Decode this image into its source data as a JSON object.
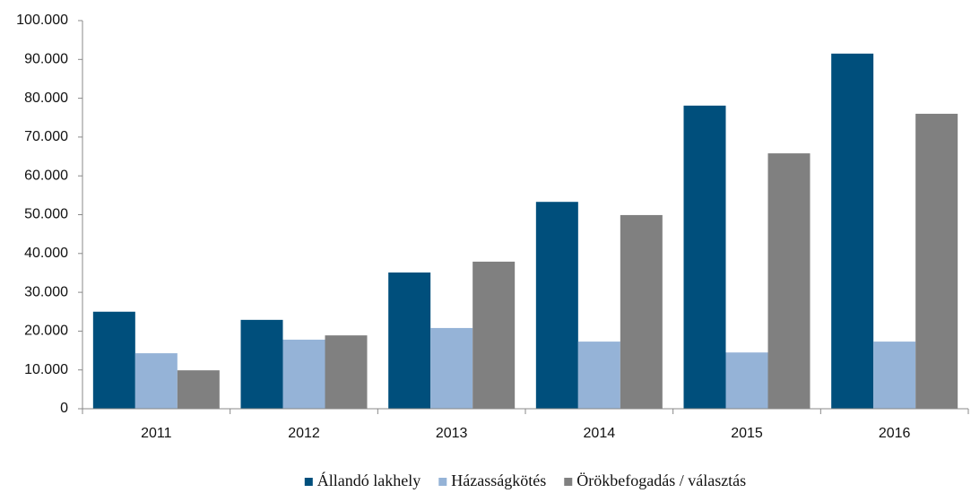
{
  "chart_data": {
    "type": "bar",
    "categories": [
      "2011",
      "2012",
      "2013",
      "2014",
      "2015",
      "2016"
    ],
    "series": [
      {
        "name": "Állandó lakhely",
        "color": "#004f7c",
        "values": [
          25000,
          22900,
          35100,
          53300,
          78100,
          91500
        ]
      },
      {
        "name": "Házasságkötés",
        "color": "#95b3d7",
        "values": [
          14300,
          17800,
          20800,
          17300,
          14500,
          17300
        ]
      },
      {
        "name": "Örökbefogadás / választás",
        "color": "#808080",
        "values": [
          9900,
          18900,
          37900,
          49900,
          65800,
          76000
        ]
      }
    ],
    "ylim": [
      0,
      100000
    ],
    "yticks": [
      0,
      {
        "value": 10000,
        "label": "10.000"
      },
      {
        "value": 20000,
        "label": "20.000"
      },
      {
        "value": 30000,
        "label": "30.000"
      },
      {
        "value": 40000,
        "label": "40.000"
      },
      {
        "value": 50000,
        "label": "50.000"
      },
      {
        "value": 60000,
        "label": "60.000"
      },
      {
        "value": 70000,
        "label": "70.000"
      },
      {
        "value": 80000,
        "label": "80.000"
      },
      {
        "value": 90000,
        "label": "90.000"
      },
      {
        "value": 100000,
        "label": "100.000"
      }
    ],
    "grid": false,
    "legend": "bottom"
  }
}
